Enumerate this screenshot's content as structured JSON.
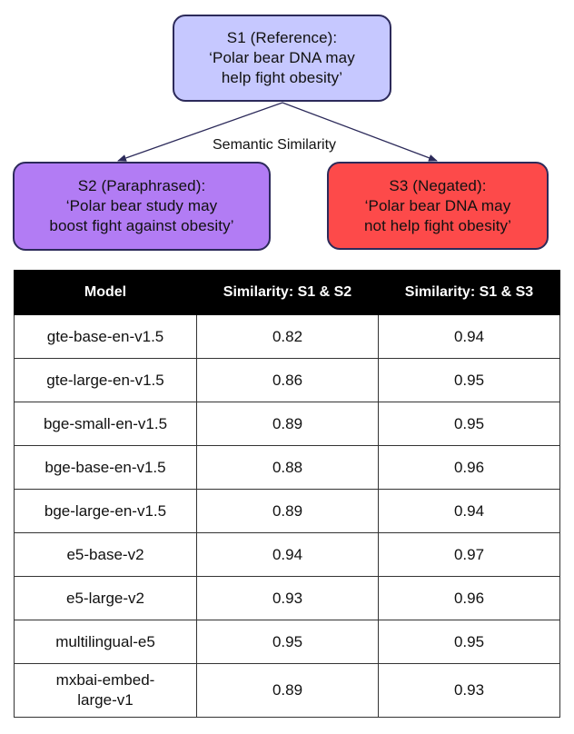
{
  "diagram": {
    "s1": {
      "line1": "S1 (Reference):",
      "line2": "‘Polar bear DNA may",
      "line3": "help fight obesity’",
      "color": "#c6c8ff"
    },
    "s2": {
      "line1": "S2 (Paraphrased):",
      "line2": "‘Polar bear study may",
      "line3": "boost fight against obesity’",
      "color": "#b27cf4"
    },
    "s3": {
      "line1": "S3 (Negated):",
      "line2": "‘Polar bear DNA may",
      "line3": "not help fight obesity’",
      "color": "#fd4a4a"
    },
    "edge_label": "Semantic Similarity"
  },
  "table": {
    "headers": [
      "Model",
      "Similarity: S1 & S2",
      "Similarity: S1 & S3"
    ],
    "rows": [
      {
        "model": "gte-base-en-v1.5",
        "s1s2": "0.82",
        "s1s3": "0.94"
      },
      {
        "model": "gte-large-en-v1.5",
        "s1s2": "0.86",
        "s1s3": "0.95"
      },
      {
        "model": "bge-small-en-v1.5",
        "s1s2": "0.89",
        "s1s3": "0.95"
      },
      {
        "model": "bge-base-en-v1.5",
        "s1s2": "0.88",
        "s1s3": "0.96"
      },
      {
        "model": "bge-large-en-v1.5",
        "s1s2": "0.89",
        "s1s3": "0.94"
      },
      {
        "model": "e5-base-v2",
        "s1s2": "0.94",
        "s1s3": "0.97"
      },
      {
        "model": "e5-large-v2",
        "s1s2": "0.93",
        "s1s3": "0.96"
      },
      {
        "model": "multilingual-e5",
        "s1s2": "0.95",
        "s1s3": "0.95"
      },
      {
        "model": "mxbai-embed-large-v1",
        "model_line1": "mxbai-embed-",
        "model_line2": "large-v1",
        "s1s2": "0.89",
        "s1s3": "0.93"
      }
    ]
  }
}
